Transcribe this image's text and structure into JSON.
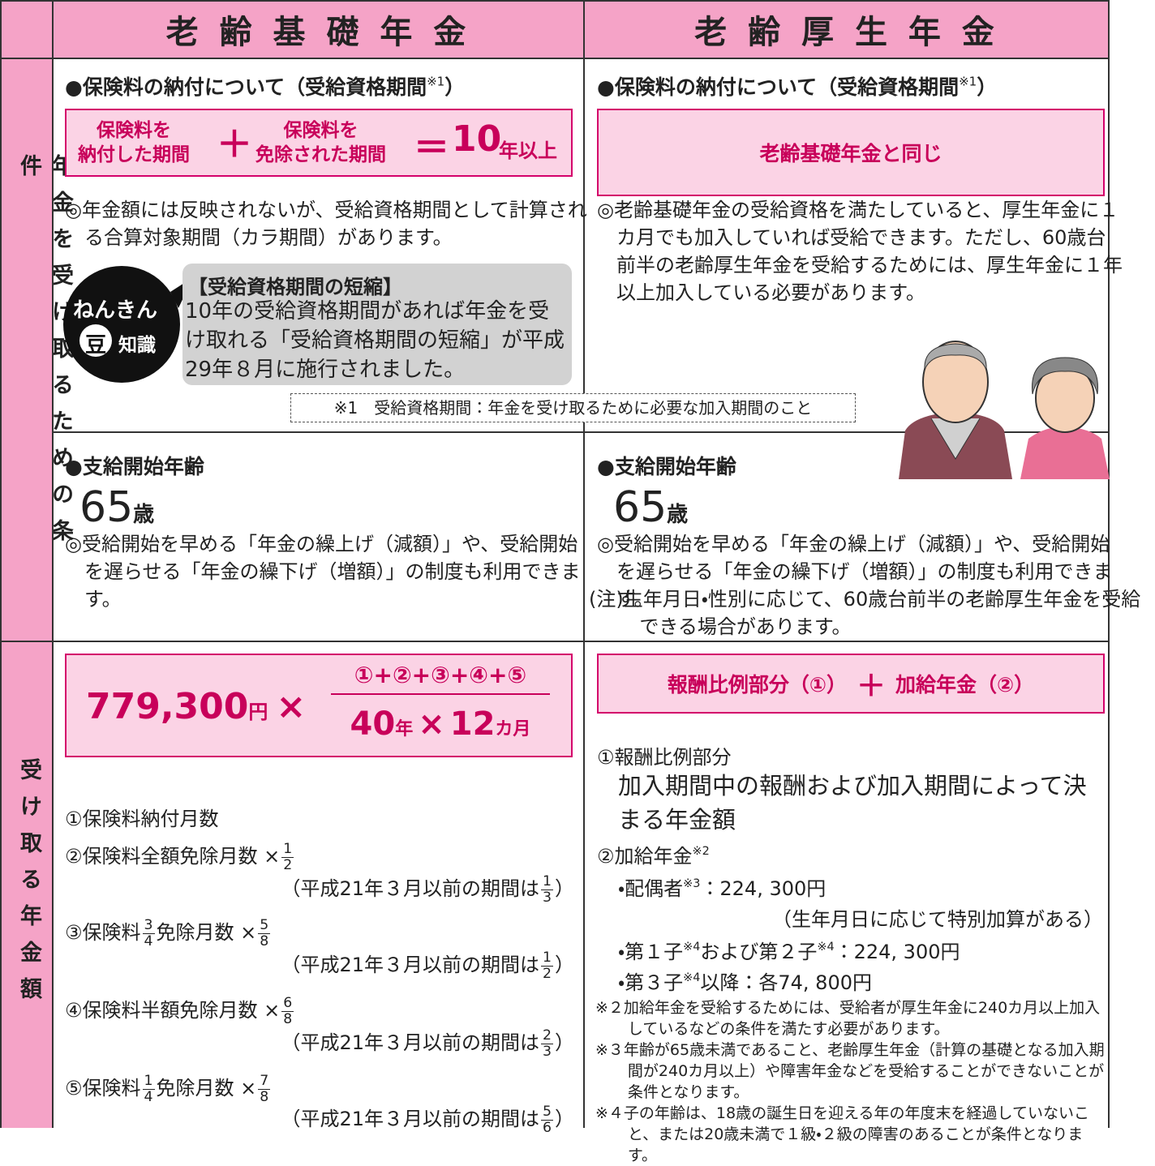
{
  "header": {
    "col1": "老 齢 基 礎 年 金",
    "col2": "老 齢 厚 生 年 金"
  },
  "row_labels": [
    "年金を受け取るための条件",
    "受け取る年金額"
  ],
  "kiso": {
    "eligibility": {
      "heading": [
        "●保険料の納付について（受給資格期間",
        {
          "sup": "※1"
        },
        "）"
      ],
      "formula": {
        "term1": [
          "保険料を",
          "納付した期間"
        ],
        "plus": "＋",
        "term2": [
          "保険料を",
          "免除された期間"
        ],
        "equals": "＝",
        "number": "10",
        "unit": "年以上"
      },
      "note": "◎年金額には反映されないが、受給資格期間として計算される合算対象期間（カラ期間）があります。",
      "trivia": {
        "badge": [
          "ねんきん",
          "豆",
          "知識"
        ],
        "title": "【受給資格期間の短縮】",
        "body": "10年の受給資格期間があれば年金を受け取れる「受給資格期間の短縮」が平成29年８月に施行されました。"
      }
    },
    "age": {
      "heading": "●支給開始年齢",
      "number": "65",
      "unit": "歳",
      "note": "◎受給開始を早める「年金の繰上げ（減額）」や、受給開始を遅らせる「年金の繰下げ（増額）」の制度も利用できます。"
    },
    "amount": {
      "formula": {
        "base": "779,300",
        "base_unit": "円",
        "times": "×",
        "numerator": "①+②+③+④+⑤",
        "den_years": "40",
        "den_years_unit": "年",
        "den_times": "×",
        "den_months": "12",
        "den_months_unit": "カ月"
      },
      "items": [
        {
          "line1": [
            "①保険料納付月数"
          ]
        },
        {
          "line1": [
            "②保険料全額免除月数 ×",
            [
              "1",
              "2"
            ]
          ],
          "line2": [
            "（平成21年３月以前の期間は",
            [
              "1",
              "3"
            ],
            "）"
          ]
        },
        {
          "line1": [
            "③保険料",
            [
              "3",
              "4"
            ],
            "免除月数 ×",
            [
              "5",
              "8"
            ]
          ],
          "line2": [
            "（平成21年３月以前の期間は",
            [
              "1",
              "2"
            ],
            "）"
          ]
        },
        {
          "line1": [
            "④保険料半額免除月数 ×",
            [
              "6",
              "8"
            ]
          ],
          "line2": [
            "（平成21年３月以前の期間は",
            [
              "2",
              "3"
            ],
            "）"
          ]
        },
        {
          "line1": [
            "⑤保険料",
            [
              "1",
              "4"
            ],
            "免除月数 ×",
            [
              "7",
              "8"
            ]
          ],
          "line2": [
            "（平成21年３月以前の期間は",
            [
              "5",
              "6"
            ],
            "）"
          ]
        }
      ]
    }
  },
  "footnote1": "※1　受給資格期間：年金を受け取るために必要な加入期間のこと",
  "kosei": {
    "eligibility": {
      "heading": [
        "●保険料の納付について（受給資格期間",
        {
          "sup": "※1"
        },
        "）"
      ],
      "box": "老齢基礎年金と同じ",
      "note": "◎老齢基礎年金の受給資格を満たしていると、厚生年金に１カ月でも加入していれば受給できます。ただし、60歳台前半の老齢厚生年金を受給するためには、厚生年金に１年以上加入している必要があります。"
    },
    "age": {
      "heading": "●支給開始年齢",
      "number": "65",
      "unit": "歳",
      "note": "◎受給開始を早める「年金の繰上げ（減額）」や、受給開始を遅らせる「年金の繰下げ（増額）」の制度も利用できます。",
      "caution": "(注)生年月日・性別に応じて、60歳台前半の老齢厚生年金を受給できる場合があります。"
    },
    "amount": {
      "formula": [
        "報酬比例部分（①）",
        "＋",
        "加給年金（②）"
      ],
      "lines": [
        [
          "①報酬比例部分"
        ],
        [
          "加入期間中の報酬および加入期間によって決まる年金額"
        ],
        [
          "②加給年金",
          {
            "sup": "※2"
          }
        ],
        [
          "・配偶者",
          {
            "sup": "※3"
          },
          "：224, 300円"
        ],
        [
          "（生年月日に応じて特別加算がある）"
        ],
        [
          "・第１子",
          {
            "sup": "※4"
          },
          "および第２子",
          {
            "sup": "※4"
          },
          "：224, 300円"
        ],
        [
          "・第３子",
          {
            "sup": "※4"
          },
          "以降：各74, 800円"
        ]
      ],
      "notes": [
        "※２加給年金を受給するためには、受給者が厚生年金に240カ月以上加入しているなどの条件を満たす必要があります。",
        "※３年齢が65歳未満であること、老齢厚生年金（計算の基礎となる加入期間が240カ月以上）や障害年金などを受給することができないことが条件となります。",
        "※４子の年齢は、18歳の誕生日を迎える年の年度末を経過していないこと、または20歳未満で１級・２級の障害のあることが条件となります。"
      ]
    }
  }
}
